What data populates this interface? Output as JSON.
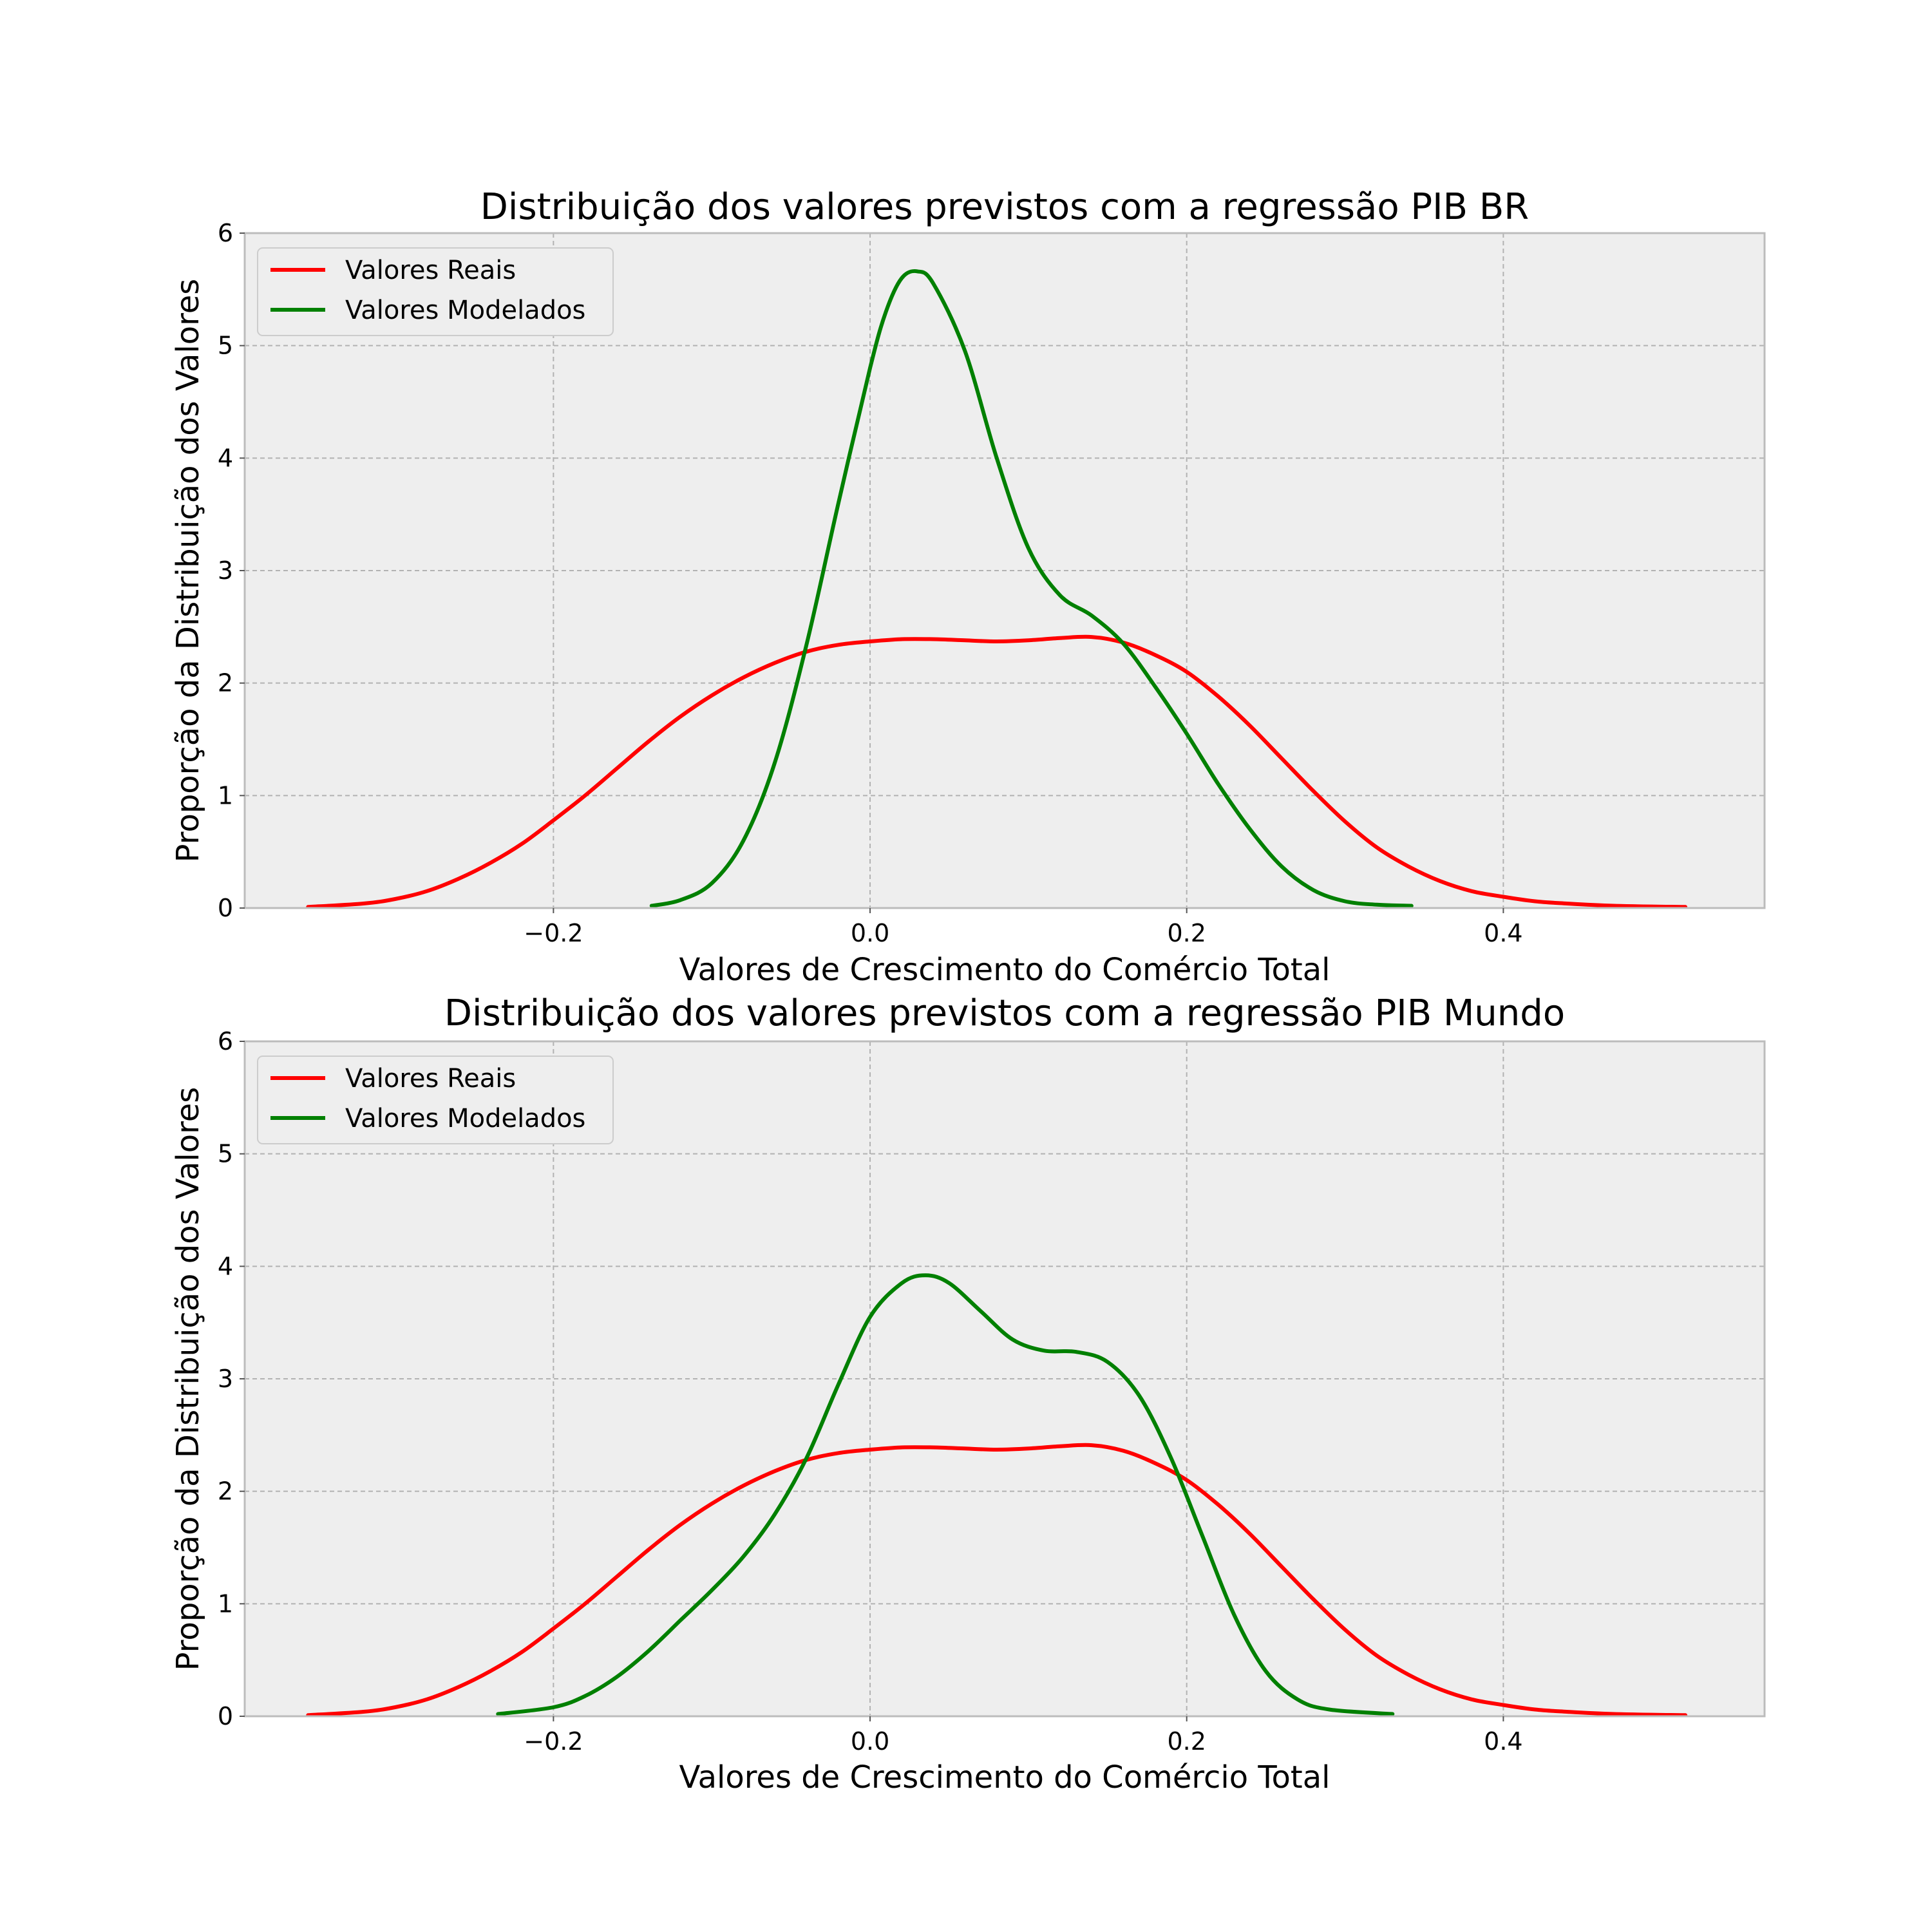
{
  "chart_data": [
    {
      "type": "line",
      "title": "Distribuição dos valores previstos com a regressão PIB BR",
      "xlabel": "Valores de Crescimento do Comércio Total",
      "ylabel": "Proporção da Distribuição dos Valores",
      "xlim": [
        -0.395,
        0.565
      ],
      "ylim": [
        0,
        6
      ],
      "x_ticks": [
        -0.2,
        0.0,
        0.2,
        0.4
      ],
      "x_tick_labels": [
        "−0.2",
        "0.0",
        "0.2",
        "0.4"
      ],
      "y_ticks": [
        0,
        1,
        2,
        3,
        4,
        5,
        6
      ],
      "y_tick_labels": [
        "0",
        "1",
        "2",
        "3",
        "4",
        "5",
        "6"
      ],
      "grid": true,
      "legend_position": "top-left",
      "series": [
        {
          "name": "Valores Reais",
          "color": "#ff0000",
          "points": [
            [
              -0.355,
              0.01
            ],
            [
              -0.32,
              0.04
            ],
            [
              -0.3,
              0.08
            ],
            [
              -0.28,
              0.15
            ],
            [
              -0.26,
              0.26
            ],
            [
              -0.24,
              0.4
            ],
            [
              -0.22,
              0.57
            ],
            [
              -0.2,
              0.78
            ],
            [
              -0.18,
              1.0
            ],
            [
              -0.16,
              1.24
            ],
            [
              -0.14,
              1.48
            ],
            [
              -0.12,
              1.7
            ],
            [
              -0.1,
              1.89
            ],
            [
              -0.08,
              2.05
            ],
            [
              -0.06,
              2.18
            ],
            [
              -0.04,
              2.28
            ],
            [
              -0.02,
              2.34
            ],
            [
              0.0,
              2.37
            ],
            [
              0.02,
              2.39
            ],
            [
              0.04,
              2.39
            ],
            [
              0.06,
              2.38
            ],
            [
              0.08,
              2.37
            ],
            [
              0.1,
              2.38
            ],
            [
              0.12,
              2.4
            ],
            [
              0.14,
              2.41
            ],
            [
              0.16,
              2.36
            ],
            [
              0.18,
              2.25
            ],
            [
              0.2,
              2.1
            ],
            [
              0.22,
              1.88
            ],
            [
              0.24,
              1.62
            ],
            [
              0.26,
              1.33
            ],
            [
              0.28,
              1.04
            ],
            [
              0.3,
              0.77
            ],
            [
              0.32,
              0.54
            ],
            [
              0.34,
              0.37
            ],
            [
              0.36,
              0.24
            ],
            [
              0.38,
              0.15
            ],
            [
              0.4,
              0.1
            ],
            [
              0.42,
              0.06
            ],
            [
              0.44,
              0.04
            ],
            [
              0.47,
              0.02
            ],
            [
              0.515,
              0.01
            ]
          ]
        },
        {
          "name": "Valores Modelados",
          "color": "#008000",
          "points": [
            [
              -0.138,
              0.02
            ],
            [
              -0.12,
              0.07
            ],
            [
              -0.1,
              0.22
            ],
            [
              -0.08,
              0.6
            ],
            [
              -0.06,
              1.3
            ],
            [
              -0.04,
              2.35
            ],
            [
              -0.02,
              3.6
            ],
            [
              0.0,
              4.8
            ],
            [
              0.01,
              5.3
            ],
            [
              0.02,
              5.6
            ],
            [
              0.03,
              5.66
            ],
            [
              0.04,
              5.55
            ],
            [
              0.06,
              4.95
            ],
            [
              0.08,
              4.0
            ],
            [
              0.1,
              3.2
            ],
            [
              0.12,
              2.78
            ],
            [
              0.14,
              2.6
            ],
            [
              0.16,
              2.35
            ],
            [
              0.18,
              1.97
            ],
            [
              0.2,
              1.55
            ],
            [
              0.22,
              1.1
            ],
            [
              0.24,
              0.7
            ],
            [
              0.26,
              0.37
            ],
            [
              0.28,
              0.16
            ],
            [
              0.3,
              0.06
            ],
            [
              0.32,
              0.03
            ],
            [
              0.342,
              0.02
            ]
          ]
        }
      ]
    },
    {
      "type": "line",
      "title": "Distribuição dos valores previstos com a regressão PIB Mundo",
      "xlabel": "Valores de Crescimento do Comércio Total",
      "ylabel": "Proporção da Distribuição dos Valores",
      "xlim": [
        -0.395,
        0.565
      ],
      "ylim": [
        0,
        6
      ],
      "x_ticks": [
        -0.2,
        0.0,
        0.2,
        0.4
      ],
      "x_tick_labels": [
        "−0.2",
        "0.0",
        "0.2",
        "0.4"
      ],
      "y_ticks": [
        0,
        1,
        2,
        3,
        4,
        5,
        6
      ],
      "y_tick_labels": [
        "0",
        "1",
        "2",
        "3",
        "4",
        "5",
        "6"
      ],
      "grid": true,
      "legend_position": "top-left",
      "series": [
        {
          "name": "Valores Reais",
          "color": "#ff0000",
          "points": [
            [
              -0.355,
              0.01
            ],
            [
              -0.32,
              0.04
            ],
            [
              -0.3,
              0.08
            ],
            [
              -0.28,
              0.15
            ],
            [
              -0.26,
              0.26
            ],
            [
              -0.24,
              0.4
            ],
            [
              -0.22,
              0.57
            ],
            [
              -0.2,
              0.78
            ],
            [
              -0.18,
              1.0
            ],
            [
              -0.16,
              1.24
            ],
            [
              -0.14,
              1.48
            ],
            [
              -0.12,
              1.7
            ],
            [
              -0.1,
              1.89
            ],
            [
              -0.08,
              2.05
            ],
            [
              -0.06,
              2.18
            ],
            [
              -0.04,
              2.28
            ],
            [
              -0.02,
              2.34
            ],
            [
              0.0,
              2.37
            ],
            [
              0.02,
              2.39
            ],
            [
              0.04,
              2.39
            ],
            [
              0.06,
              2.38
            ],
            [
              0.08,
              2.37
            ],
            [
              0.1,
              2.38
            ],
            [
              0.12,
              2.4
            ],
            [
              0.14,
              2.41
            ],
            [
              0.16,
              2.36
            ],
            [
              0.18,
              2.25
            ],
            [
              0.2,
              2.1
            ],
            [
              0.22,
              1.88
            ],
            [
              0.24,
              1.62
            ],
            [
              0.26,
              1.33
            ],
            [
              0.28,
              1.04
            ],
            [
              0.3,
              0.77
            ],
            [
              0.32,
              0.54
            ],
            [
              0.34,
              0.37
            ],
            [
              0.36,
              0.24
            ],
            [
              0.38,
              0.15
            ],
            [
              0.4,
              0.1
            ],
            [
              0.42,
              0.06
            ],
            [
              0.44,
              0.04
            ],
            [
              0.47,
              0.02
            ],
            [
              0.515,
              0.01
            ]
          ]
        },
        {
          "name": "Valores Modelados",
          "color": "#008000",
          "points": [
            [
              -0.235,
              0.02
            ],
            [
              -0.2,
              0.08
            ],
            [
              -0.18,
              0.18
            ],
            [
              -0.16,
              0.35
            ],
            [
              -0.14,
              0.58
            ],
            [
              -0.12,
              0.85
            ],
            [
              -0.1,
              1.12
            ],
            [
              -0.08,
              1.42
            ],
            [
              -0.06,
              1.8
            ],
            [
              -0.04,
              2.3
            ],
            [
              -0.02,
              2.95
            ],
            [
              0.0,
              3.55
            ],
            [
              0.02,
              3.85
            ],
            [
              0.035,
              3.92
            ],
            [
              0.05,
              3.85
            ],
            [
              0.07,
              3.6
            ],
            [
              0.09,
              3.35
            ],
            [
              0.11,
              3.25
            ],
            [
              0.13,
              3.24
            ],
            [
              0.15,
              3.15
            ],
            [
              0.17,
              2.85
            ],
            [
              0.19,
              2.3
            ],
            [
              0.21,
              1.6
            ],
            [
              0.23,
              0.9
            ],
            [
              0.25,
              0.4
            ],
            [
              0.27,
              0.15
            ],
            [
              0.29,
              0.06
            ],
            [
              0.33,
              0.02
            ]
          ]
        }
      ]
    }
  ]
}
